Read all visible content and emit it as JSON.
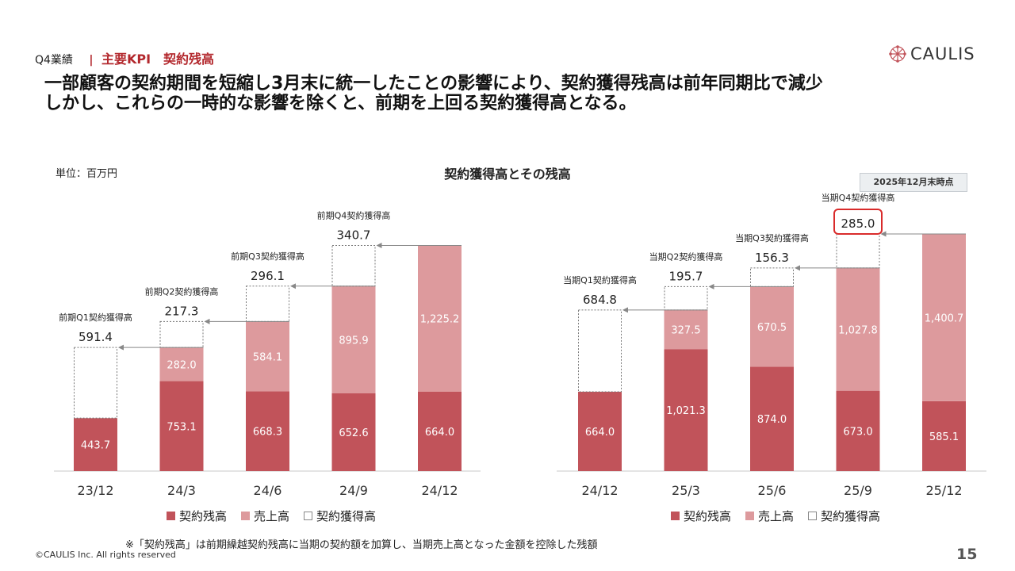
{
  "header": {
    "section": "Q4業績",
    "separator": "|",
    "kpi_title": "主要KPI　契約残高",
    "logo_text": "CAULIS"
  },
  "headline": {
    "line1": "一部顧客の契約期間を短縮し3月末に統一したことの影響により、契約獲得残高は前年同期比で減少",
    "line2": "しかし、これらの一時的な影響を除くと、前期を上回る契約獲得高となる。"
  },
  "unit_label": "単位：百万円",
  "chart_title": "契約獲得高とその残高",
  "as_of_badge": "2025年12月末時点",
  "legend": {
    "backlog": "契約残高",
    "sales": "売上高",
    "acquisition": "契約獲得高"
  },
  "colors": {
    "backlog": "#c1535a",
    "sales": "#dd9a9d",
    "accent": "#b3282d",
    "highlight_border": "#d92b2b"
  },
  "chart_data": [
    {
      "type": "bar",
      "stacked": true,
      "categories": [
        "23/12",
        "24/3",
        "24/6",
        "24/9",
        "24/12"
      ],
      "series": [
        {
          "name": "契約残高",
          "values": [
            443.7,
            753.1,
            668.3,
            652.6,
            664.0
          ],
          "labels": [
            "443.7",
            "753.1",
            "668.3",
            "652.6",
            "664.0"
          ]
        },
        {
          "name": "売上高",
          "values": [
            0,
            282.0,
            584.1,
            895.9,
            1225.2
          ],
          "labels": [
            "",
            "282.0",
            "584.1",
            "895.9",
            "1,225.2"
          ]
        },
        {
          "name": "契約獲得高",
          "values": [
            591.4,
            217.3,
            296.1,
            340.7,
            0
          ],
          "labels": [
            "591.4",
            "217.3",
            "296.1",
            "340.7",
            ""
          ]
        }
      ],
      "annotations": [
        "前期Q1契約獲得高",
        "前期Q2契約獲得高",
        "前期Q3契約獲得高",
        "前期Q4契約獲得高",
        ""
      ],
      "highlight_index": -1,
      "ylim": [
        0,
        1900
      ]
    },
    {
      "type": "bar",
      "stacked": true,
      "categories": [
        "24/12",
        "25/3",
        "25/6",
        "25/9",
        "25/12"
      ],
      "series": [
        {
          "name": "契約残高",
          "values": [
            664.0,
            1021.3,
            874.0,
            673.0,
            585.1
          ],
          "labels": [
            "664.0",
            "1,021.3",
            "874.0",
            "673.0",
            "585.1"
          ]
        },
        {
          "name": "売上高",
          "values": [
            0,
            327.5,
            670.5,
            1027.8,
            1400.7
          ],
          "labels": [
            "",
            "327.5",
            "670.5",
            "1,027.8",
            "1,400.7"
          ]
        },
        {
          "name": "契約獲得高",
          "values": [
            684.8,
            195.7,
            156.3,
            285.0,
            0
          ],
          "labels": [
            "684.8",
            "195.7",
            "156.3",
            "285.0",
            ""
          ]
        }
      ],
      "annotations": [
        "当期Q1契約獲得高",
        "当期Q2契約獲得高",
        "当期Q3契約獲得高",
        "当期Q4契約獲得高",
        ""
      ],
      "highlight_index": 3,
      "ylim": [
        0,
        1900
      ]
    }
  ],
  "footnote": "※「契約残高」は前期繰越契約残高に当期の契約額を加算し、当期売上高となった金額を控除した残額",
  "copyright": "©CAULIS Inc. All rights reserved",
  "page_number": "15"
}
